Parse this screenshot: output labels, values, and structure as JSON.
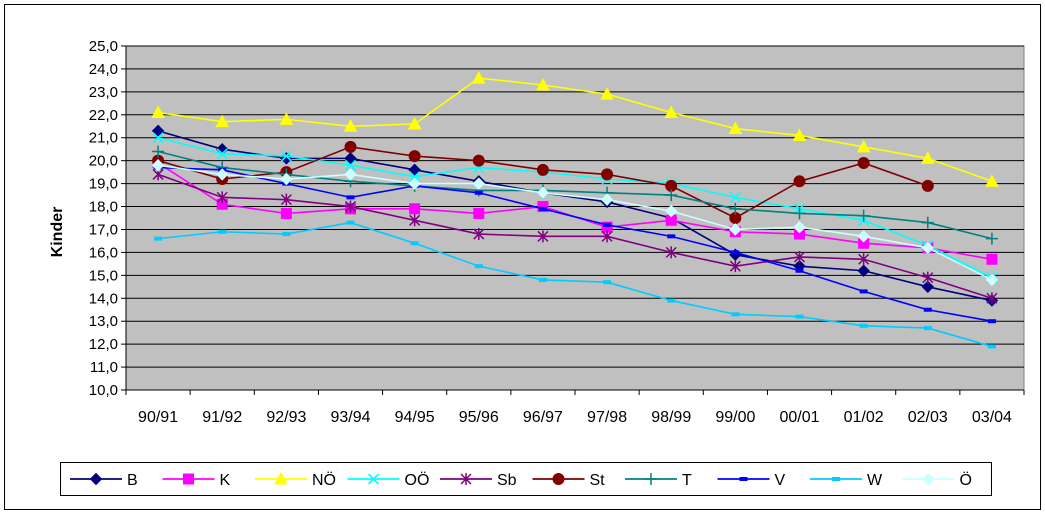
{
  "chart_data": {
    "type": "line",
    "title": "",
    "xlabel": "",
    "ylabel": "Kinder",
    "ylim": [
      10,
      25
    ],
    "ytick_step": 1,
    "ytick_labels": [
      "10,0",
      "11,0",
      "12,0",
      "13,0",
      "14,0",
      "15,0",
      "16,0",
      "17,0",
      "18,0",
      "19,0",
      "20,0",
      "21,0",
      "22,0",
      "23,0",
      "24,0",
      "25,0"
    ],
    "grid": true,
    "plot_background": "#c0c0c0",
    "legend_position": "bottom",
    "categories": [
      "90/91",
      "91/92",
      "92/93",
      "93/94",
      "94/95",
      "95/96",
      "96/97",
      "97/98",
      "98/99",
      "99/00",
      "00/01",
      "01/02",
      "02/03",
      "03/04"
    ],
    "series": [
      {
        "name": "B",
        "color": "#000080",
        "marker": "diamond",
        "values": [
          21.3,
          20.5,
          20.1,
          20.1,
          19.6,
          19.1,
          18.6,
          18.2,
          17.5,
          15.9,
          15.4,
          15.2,
          14.5,
          13.9
        ]
      },
      {
        "name": "K",
        "color": "#ff00ff",
        "marker": "square",
        "values": [
          19.9,
          18.1,
          17.7,
          17.9,
          17.9,
          17.7,
          18.0,
          17.1,
          17.4,
          16.9,
          16.8,
          16.4,
          16.2,
          15.7
        ]
      },
      {
        "name": "NÖ",
        "color": "#ffff00",
        "marker": "triangle",
        "values": [
          22.1,
          21.7,
          21.8,
          21.5,
          21.6,
          23.6,
          23.3,
          22.9,
          22.1,
          21.4,
          21.1,
          20.6,
          20.1,
          19.1
        ]
      },
      {
        "name": "OÖ",
        "color": "#00ffff",
        "marker": "x",
        "values": [
          21.0,
          20.3,
          20.2,
          19.8,
          19.3,
          19.7,
          19.5,
          19.2,
          19.0,
          18.4,
          17.9,
          17.4,
          16.3,
          14.9
        ]
      },
      {
        "name": "Sb",
        "color": "#800080",
        "marker": "star",
        "values": [
          19.4,
          18.4,
          18.3,
          18.0,
          17.4,
          16.8,
          16.7,
          16.7,
          16.0,
          15.4,
          15.8,
          15.7,
          14.9,
          14.0
        ]
      },
      {
        "name": "St",
        "color": "#800000",
        "marker": "circle",
        "values": [
          20.0,
          19.2,
          19.5,
          20.6,
          20.2,
          20.0,
          19.6,
          19.4,
          18.9,
          17.5,
          19.1,
          19.9,
          18.9,
          null
        ]
      },
      {
        "name": "T",
        "color": "#008080",
        "marker": "plus",
        "values": [
          20.4,
          19.7,
          19.4,
          19.1,
          18.9,
          18.7,
          18.7,
          18.6,
          18.5,
          17.9,
          17.7,
          17.6,
          17.3,
          16.6
        ]
      },
      {
        "name": "V",
        "color": "#0000ff",
        "marker": "dash",
        "values": [
          19.7,
          19.6,
          19.0,
          18.4,
          18.9,
          18.6,
          17.9,
          17.2,
          16.7,
          16.0,
          15.2,
          14.3,
          13.5,
          13.0
        ]
      },
      {
        "name": "W",
        "color": "#00ccff",
        "marker": "dash",
        "values": [
          16.6,
          16.9,
          16.8,
          17.3,
          16.4,
          15.4,
          14.8,
          14.7,
          13.9,
          13.3,
          13.2,
          12.8,
          12.7,
          11.9
        ]
      },
      {
        "name": "Ö",
        "color": "#ccffff",
        "marker": "diamond",
        "values": [
          19.8,
          19.4,
          19.2,
          19.4,
          19.0,
          19.0,
          18.6,
          18.3,
          17.8,
          17.0,
          17.1,
          16.7,
          16.2,
          14.8
        ]
      }
    ]
  }
}
